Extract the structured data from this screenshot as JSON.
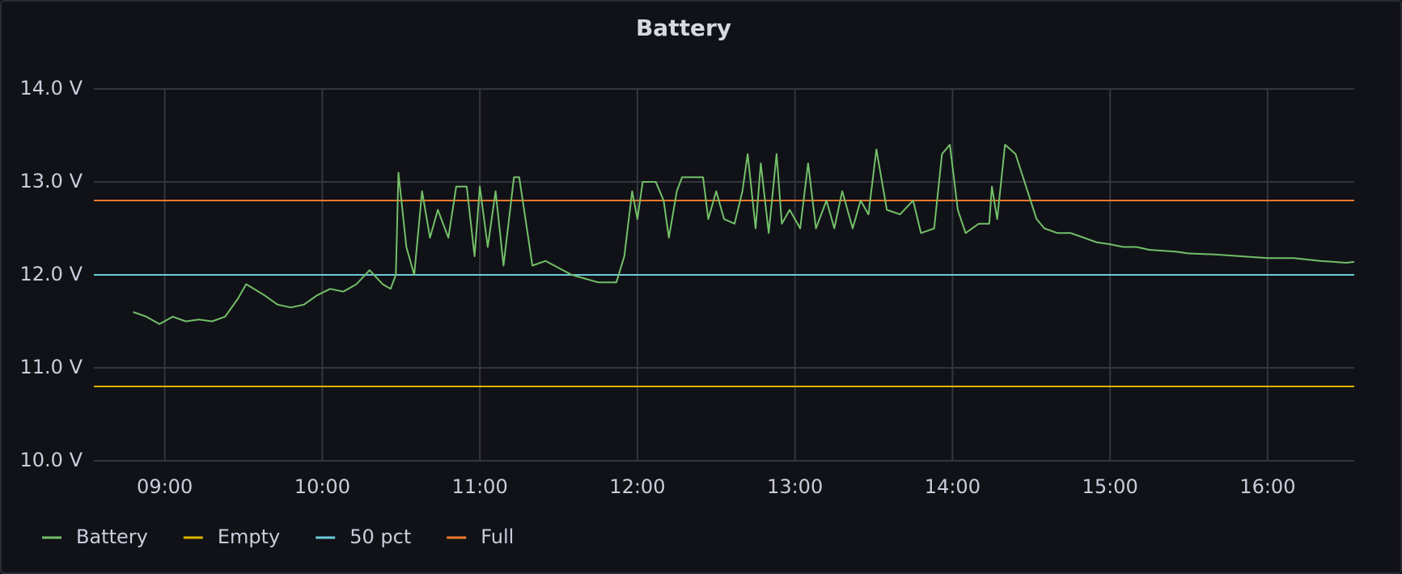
{
  "chart_data": {
    "type": "line",
    "title": "Battery",
    "xlim": [
      "08:33",
      "16:33"
    ],
    "xticks": [
      "09:00",
      "10:00",
      "11:00",
      "12:00",
      "13:00",
      "14:00",
      "15:00",
      "16:00"
    ],
    "ylim": [
      10,
      14
    ],
    "yticks": [
      {
        "value": 10,
        "label": "10.0 V"
      },
      {
        "value": 11,
        "label": "11.0 V"
      },
      {
        "value": 12,
        "label": "12.0 V"
      },
      {
        "value": 13,
        "label": "13.0 V"
      },
      {
        "value": 14,
        "label": "14.0 V"
      }
    ],
    "grid": true,
    "legend": "bottom-left",
    "series": [
      {
        "name": "Battery",
        "color": "#73bf69",
        "x": [
          "08:48",
          "08:53",
          "08:58",
          "09:03",
          "09:08",
          "09:13",
          "09:18",
          "09:23",
          "09:28",
          "09:31",
          "09:38",
          "09:43",
          "09:48",
          "09:53",
          "09:58",
          "10:03",
          "10:08",
          "10:13",
          "10:18",
          "10:23",
          "10:26",
          "10:28",
          "10:29",
          "10:32",
          "10:35",
          "10:38",
          "10:41",
          "10:44",
          "10:48",
          "10:51",
          "10:55",
          "10:58",
          "11:00",
          "11:03",
          "11:06",
          "11:09",
          "11:13",
          "11:15",
          "11:20",
          "11:25",
          "11:35",
          "11:45",
          "11:52",
          "11:55",
          "11:58",
          "12:00",
          "12:02",
          "12:07",
          "12:10",
          "12:12",
          "12:15",
          "12:17",
          "12:25",
          "12:27",
          "12:30",
          "12:33",
          "12:37",
          "12:40",
          "12:42",
          "12:45",
          "12:47",
          "12:50",
          "12:53",
          "12:55",
          "12:58",
          "13:02",
          "13:05",
          "13:08",
          "13:12",
          "13:15",
          "13:18",
          "13:22",
          "13:25",
          "13:28",
          "13:31",
          "13:35",
          "13:40",
          "13:45",
          "13:48",
          "13:53",
          "13:56",
          "13:59",
          "14:02",
          "14:05",
          "14:10",
          "14:14",
          "14:15",
          "14:17",
          "14:20",
          "14:24",
          "14:28",
          "14:32",
          "14:35",
          "14:40",
          "14:45",
          "14:50",
          "14:55",
          "15:00",
          "15:05",
          "15:10",
          "15:15",
          "15:20",
          "15:25",
          "15:30",
          "15:40",
          "15:50",
          "16:00",
          "16:10",
          "16:20",
          "16:30",
          "16:33"
        ],
        "values": [
          11.6,
          11.55,
          11.47,
          11.55,
          11.5,
          11.52,
          11.5,
          11.55,
          11.75,
          11.9,
          11.78,
          11.68,
          11.65,
          11.68,
          11.78,
          11.85,
          11.82,
          11.9,
          12.05,
          11.9,
          11.85,
          12.0,
          13.1,
          12.3,
          12.0,
          12.9,
          12.4,
          12.7,
          12.4,
          12.95,
          12.95,
          12.2,
          12.95,
          12.3,
          12.9,
          12.1,
          13.05,
          13.05,
          12.1,
          12.15,
          12.0,
          11.92,
          11.92,
          12.2,
          12.9,
          12.6,
          13.0,
          13.0,
          12.8,
          12.4,
          12.9,
          13.05,
          13.05,
          12.6,
          12.9,
          12.6,
          12.55,
          12.9,
          13.3,
          12.5,
          13.2,
          12.45,
          13.3,
          12.55,
          12.7,
          12.5,
          13.2,
          12.5,
          12.8,
          12.5,
          12.9,
          12.5,
          12.8,
          12.65,
          13.35,
          12.7,
          12.65,
          12.8,
          12.45,
          12.5,
          13.3,
          13.4,
          12.7,
          12.45,
          12.55,
          12.55,
          12.95,
          12.6,
          13.4,
          13.3,
          12.95,
          12.6,
          12.5,
          12.45,
          12.45,
          12.4,
          12.35,
          12.33,
          12.3,
          12.3,
          12.27,
          12.26,
          12.25,
          12.23,
          12.22,
          12.2,
          12.18,
          12.18,
          12.15,
          12.13,
          12.14
        ]
      },
      {
        "name": "Empty",
        "color": "#e0b400",
        "x": [
          "08:33",
          "16:33"
        ],
        "values": [
          10.8,
          10.8
        ]
      },
      {
        "name": "50 pct",
        "color": "#6ccadc",
        "x": [
          "08:33",
          "16:33"
        ],
        "values": [
          12.0,
          12.0
        ]
      },
      {
        "name": "Full",
        "color": "#f2792b",
        "x": [
          "08:33",
          "16:33"
        ],
        "values": [
          12.8,
          12.8
        ]
      }
    ]
  }
}
